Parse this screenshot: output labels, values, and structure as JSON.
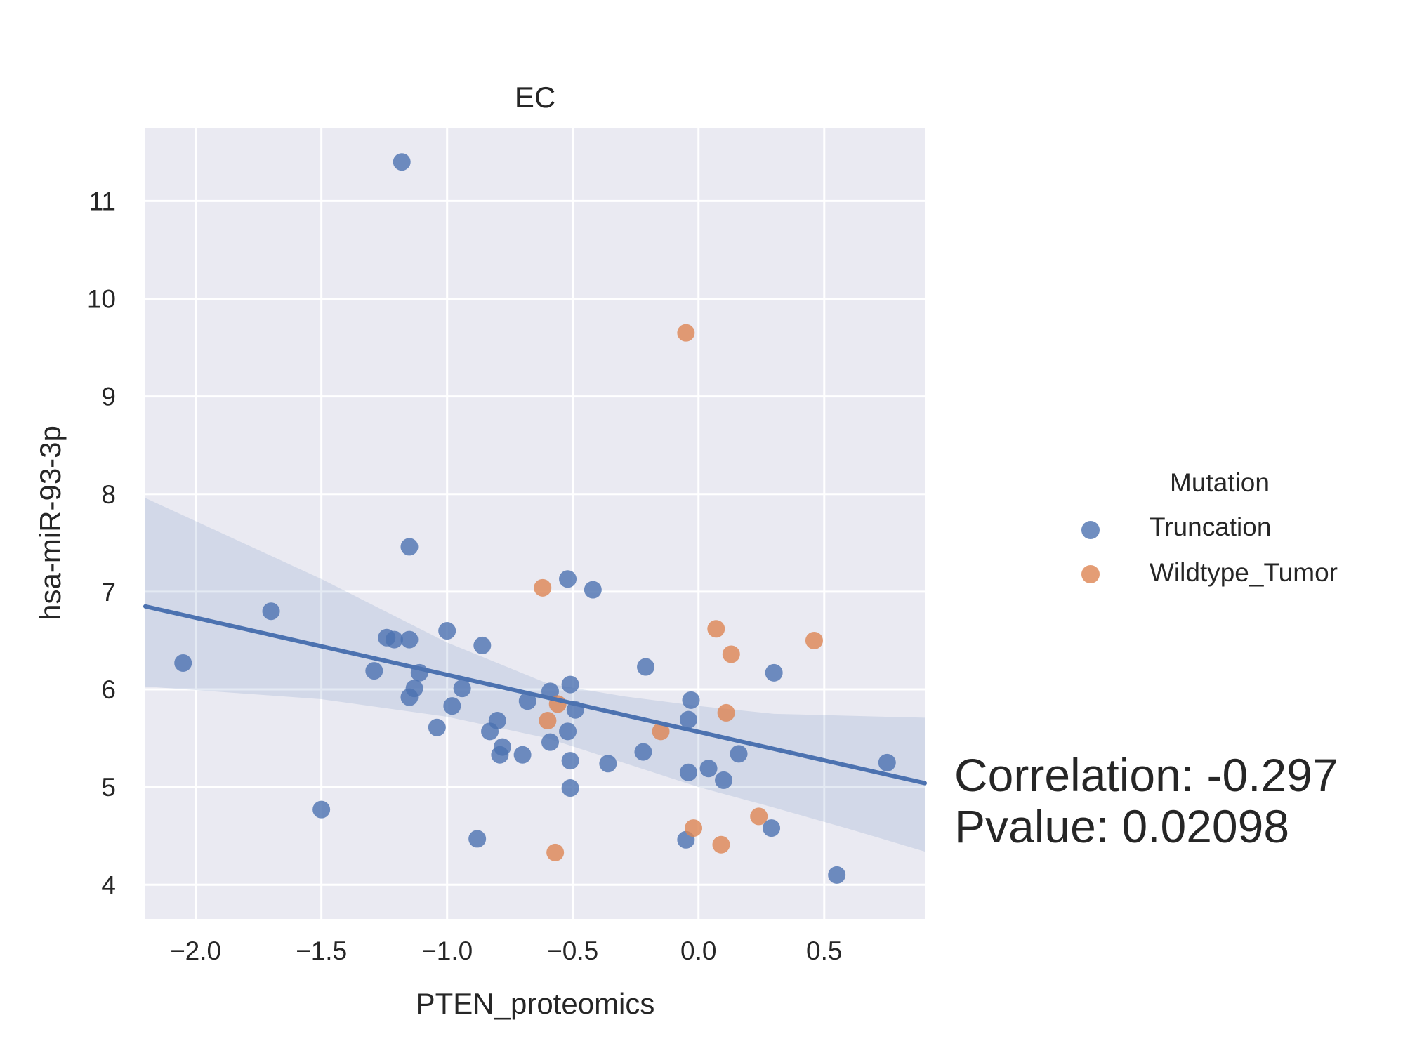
{
  "chart_data": {
    "type": "scatter",
    "title": "EC",
    "xlabel": "PTEN_proteomics",
    "ylabel": "hsa-miR-93-3p",
    "xlim": [
      -2.2,
      0.9
    ],
    "ylim": [
      3.65,
      11.75
    ],
    "x_ticks": [
      -2.0,
      -1.5,
      -1.0,
      -0.5,
      0.0,
      0.5
    ],
    "x_tick_labels": [
      "−2.0",
      "−1.5",
      "−1.0",
      "−0.5",
      "0.0",
      "0.5"
    ],
    "y_ticks": [
      4,
      5,
      6,
      7,
      8,
      9,
      10,
      11
    ],
    "y_tick_labels": [
      "4",
      "5",
      "6",
      "7",
      "8",
      "9",
      "10",
      "11"
    ],
    "grid": true,
    "legend": {
      "title": "Mutation",
      "placement": "right"
    },
    "series": [
      {
        "name": "Truncation",
        "color": "#4c72b0",
        "points": [
          [
            -1.18,
            11.4
          ],
          [
            -1.15,
            7.46
          ],
          [
            -0.52,
            7.13
          ],
          [
            -0.42,
            7.02
          ],
          [
            -1.7,
            6.8
          ],
          [
            -2.05,
            6.27
          ],
          [
            -1.24,
            6.53
          ],
          [
            -1.21,
            6.51
          ],
          [
            -1.15,
            6.51
          ],
          [
            -1.0,
            6.6
          ],
          [
            -0.86,
            6.45
          ],
          [
            -1.29,
            6.19
          ],
          [
            -1.11,
            6.17
          ],
          [
            -1.13,
            6.01
          ],
          [
            -1.15,
            5.92
          ],
          [
            -0.94,
            6.01
          ],
          [
            -0.98,
            5.83
          ],
          [
            -1.04,
            5.61
          ],
          [
            -0.8,
            5.68
          ],
          [
            -0.83,
            5.57
          ],
          [
            -0.78,
            5.41
          ],
          [
            -0.79,
            5.33
          ],
          [
            -0.7,
            5.33
          ],
          [
            -0.68,
            5.88
          ],
          [
            -0.59,
            5.98
          ],
          [
            -0.51,
            6.05
          ],
          [
            -0.49,
            5.79
          ],
          [
            -0.59,
            5.46
          ],
          [
            -0.52,
            5.57
          ],
          [
            -0.51,
            5.27
          ],
          [
            -0.36,
            5.24
          ],
          [
            -0.21,
            6.23
          ],
          [
            -0.22,
            5.36
          ],
          [
            -0.51,
            4.99
          ],
          [
            -0.03,
            5.89
          ],
          [
            -0.04,
            5.69
          ],
          [
            -0.04,
            5.15
          ],
          [
            0.04,
            5.19
          ],
          [
            0.1,
            5.07
          ],
          [
            0.16,
            5.34
          ],
          [
            0.3,
            6.17
          ],
          [
            0.29,
            4.58
          ],
          [
            0.75,
            5.25
          ],
          [
            -1.5,
            4.77
          ],
          [
            -0.88,
            4.47
          ],
          [
            -0.05,
            4.46
          ],
          [
            0.55,
            4.1
          ]
        ]
      },
      {
        "name": "Wildtype_Tumor",
        "color": "#dd8452",
        "points": [
          [
            -0.05,
            9.65
          ],
          [
            -0.62,
            7.04
          ],
          [
            0.07,
            6.62
          ],
          [
            0.13,
            6.36
          ],
          [
            0.46,
            6.5
          ],
          [
            -0.6,
            5.68
          ],
          [
            -0.56,
            5.85
          ],
          [
            -0.15,
            5.57
          ],
          [
            0.11,
            5.76
          ],
          [
            0.24,
            4.7
          ],
          [
            -0.02,
            4.58
          ],
          [
            0.09,
            4.41
          ],
          [
            -0.57,
            4.33
          ]
        ]
      }
    ],
    "regression": {
      "x": [
        -2.2,
        0.9
      ],
      "y": [
        6.85,
        5.04
      ]
    },
    "confidence_band": {
      "x": [
        -2.2,
        -1.5,
        -1.0,
        -0.6,
        -0.3,
        0.0,
        0.3,
        0.6,
        0.9
      ],
      "lower": [
        6.03,
        5.9,
        5.72,
        5.5,
        5.25,
        5.0,
        4.79,
        4.57,
        4.34
      ],
      "upper": [
        7.96,
        7.13,
        6.48,
        6.06,
        5.93,
        5.83,
        5.75,
        5.73,
        5.71
      ]
    },
    "annotations": {
      "correlation": "Correlation: -0.297",
      "pvalue": "Pvalue: 0.02098"
    }
  }
}
